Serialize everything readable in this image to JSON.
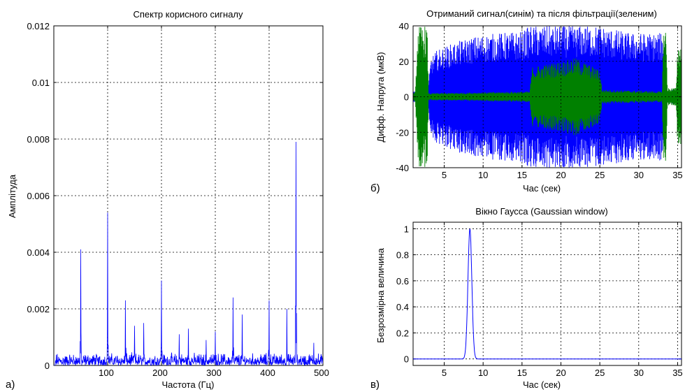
{
  "panel_labels": {
    "a": "а)",
    "b": "б)",
    "c": "в)"
  },
  "chart_data": [
    {
      "id": "spectrum",
      "type": "line",
      "title": "Спектр корисного сигналу",
      "xlabel": "Частота (Гц)",
      "ylabel": "Амплітуда",
      "xlim": [
        0,
        500
      ],
      "ylim": [
        0,
        0.012
      ],
      "xticks": [
        100,
        200,
        300,
        400,
        500
      ],
      "xtick_labels": [
        "100",
        "200",
        "300",
        "400",
        "500"
      ],
      "yticks": [
        0,
        0.002,
        0.004,
        0.006,
        0.008,
        0.01,
        0.012
      ],
      "ytick_labels": [
        "0",
        "0.002",
        "0.004",
        "0.006",
        "0.008",
        "0.01",
        "0.012"
      ],
      "grid": true,
      "series_color": "#0000ff",
      "peaks": [
        {
          "x": 50,
          "y": 0.0041
        },
        {
          "x": 100,
          "y": 0.0054
        },
        {
          "x": 133,
          "y": 0.0023
        },
        {
          "x": 150,
          "y": 0.0014
        },
        {
          "x": 167,
          "y": 0.0015
        },
        {
          "x": 200,
          "y": 0.003
        },
        {
          "x": 233,
          "y": 0.0011
        },
        {
          "x": 250,
          "y": 0.0013
        },
        {
          "x": 283,
          "y": 0.0009
        },
        {
          "x": 300,
          "y": 0.0012
        },
        {
          "x": 333,
          "y": 0.0024
        },
        {
          "x": 350,
          "y": 0.0018
        },
        {
          "x": 400,
          "y": 0.0023
        },
        {
          "x": 433,
          "y": 0.002
        },
        {
          "x": 450,
          "y": 0.0079
        },
        {
          "x": 483,
          "y": 0.0008
        }
      ],
      "noise_level": 0.0004
    },
    {
      "id": "signals",
      "type": "line",
      "title": "Отриманий сигнал(синім) та після фільтрації(зеленим)",
      "xlabel": "Час (сек)",
      "ylabel": "Дифф. Напруга (мкВ)",
      "xlim": [
        1,
        35.5
      ],
      "ylim": [
        -40,
        40
      ],
      "xticks": [
        5,
        10,
        15,
        20,
        25,
        30,
        35
      ],
      "xtick_labels": [
        "5",
        "10",
        "15",
        "20",
        "25",
        "30",
        "35"
      ],
      "yticks": [
        -40,
        -20,
        0,
        20,
        40
      ],
      "ytick_labels": [
        "-40",
        "-20",
        "0",
        "20",
        "40"
      ],
      "grid": true,
      "series": [
        {
          "color": "#0000ff",
          "envelope": [
            [
              1,
              3
            ],
            [
              1.4,
              4
            ],
            [
              1.6,
              20
            ],
            [
              2.8,
              20
            ],
            [
              3.0,
              8
            ],
            [
              3.3,
              22
            ],
            [
              4,
              26
            ],
            [
              6,
              30
            ],
            [
              8,
              33
            ],
            [
              10,
              35
            ],
            [
              12,
              36
            ],
            [
              15,
              37
            ],
            [
              16,
              40
            ],
            [
              20,
              40
            ],
            [
              25,
              40
            ],
            [
              29,
              36
            ],
            [
              33,
              36
            ],
            [
              33.4,
              30
            ],
            [
              33.6,
              4
            ],
            [
              34.8,
              4
            ],
            [
              35.0,
              12
            ],
            [
              35.5,
              12
            ]
          ]
        },
        {
          "color": "#008000",
          "envelope": [
            [
              1,
              2
            ],
            [
              1.3,
              3
            ],
            [
              1.6,
              40
            ],
            [
              2.8,
              40
            ],
            [
              3.0,
              2
            ],
            [
              16,
              3
            ],
            [
              16.3,
              17
            ],
            [
              20,
              20
            ],
            [
              22,
              22
            ],
            [
              25,
              15
            ],
            [
              25.3,
              4
            ],
            [
              33,
              3
            ],
            [
              33.2,
              40
            ],
            [
              33.5,
              40
            ],
            [
              33.7,
              5
            ],
            [
              34.8,
              5
            ],
            [
              35.0,
              30
            ],
            [
              35.5,
              30
            ]
          ]
        }
      ]
    },
    {
      "id": "gaussian",
      "type": "line",
      "title": "Вікно Гаусса (Gaussian window)",
      "xlabel": "Час (сек)",
      "ylabel": "Безрозмірна величина",
      "xlim": [
        1,
        35.5
      ],
      "ylim": [
        -0.05,
        1.05
      ],
      "xticks": [
        5,
        10,
        15,
        20,
        25,
        30,
        35
      ],
      "xtick_labels": [
        "5",
        "10",
        "15",
        "20",
        "25",
        "30",
        "35"
      ],
      "yticks": [
        0,
        0.2,
        0.4,
        0.6,
        0.8,
        1
      ],
      "ytick_labels": [
        "0",
        "0.2",
        "0.4",
        "0.6",
        "0.8",
        "1"
      ],
      "grid": true,
      "series": [
        {
          "color": "#0000ff",
          "center": 8.3,
          "sigma": 0.25,
          "peak": 1
        }
      ]
    }
  ]
}
